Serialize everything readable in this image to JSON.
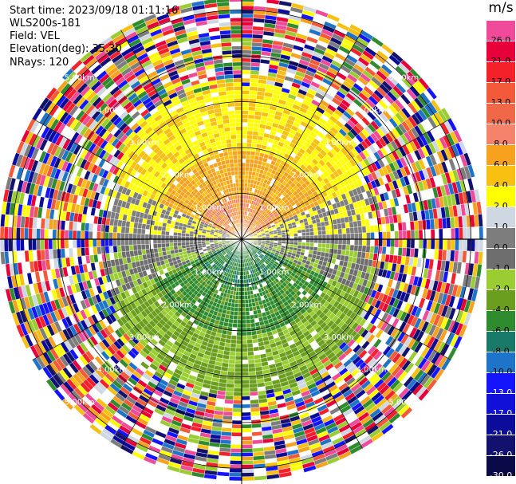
{
  "info": {
    "start_time": "Start time: 2023/09/18 01:11:16",
    "instrument": "WLS200s-181",
    "field": "Field: VEL",
    "elevation": "Elevation(deg): 35.30",
    "nrays": "NRays: 120"
  },
  "colorbar": {
    "unit": "m/s",
    "levels": [
      {
        "label": "26.0",
        "color": "#f04a9a"
      },
      {
        "label": "21.0",
        "color": "#e8003a"
      },
      {
        "label": "17.0",
        "color": "#f4202a"
      },
      {
        "label": "13.0",
        "color": "#f25a3a"
      },
      {
        "label": "10.0",
        "color": "#f06848"
      },
      {
        "label": "8.0",
        "color": "#f5826a"
      },
      {
        "label": "6.0",
        "color": "#f6a21e"
      },
      {
        "label": "4.0",
        "color": "#f8c010"
      },
      {
        "label": "2.0",
        "color": "#ffff00"
      },
      {
        "label": "1.0",
        "color": "#cfd7e2"
      },
      {
        "label": "0.0",
        "color": "#7d7d7d"
      },
      {
        "label": "-1.0",
        "color": "#6e6e6e"
      },
      {
        "label": "-2.0",
        "color": "#9acd32"
      },
      {
        "label": "-4.0",
        "color": "#6b9e1e"
      },
      {
        "label": "-6.0",
        "color": "#2e8b2e"
      },
      {
        "label": "-8.0",
        "color": "#1a7a6a"
      },
      {
        "label": "-10.0",
        "color": "#1e74c8"
      },
      {
        "label": "-13.0",
        "color": "#1414ff"
      },
      {
        "label": "-17.0",
        "color": "#1010d8"
      },
      {
        "label": "-21.0",
        "color": "#0c0c9a"
      },
      {
        "label": "-26.0",
        "color": "#12126e"
      },
      {
        "label": "-30.0",
        "color": "#0a0a48"
      }
    ]
  },
  "rings": [
    {
      "label": "1.00km"
    },
    {
      "label": "2.00km"
    },
    {
      "label": "3.00km"
    },
    {
      "label": "4.00km"
    },
    {
      "label": "5.00km"
    }
  ]
}
